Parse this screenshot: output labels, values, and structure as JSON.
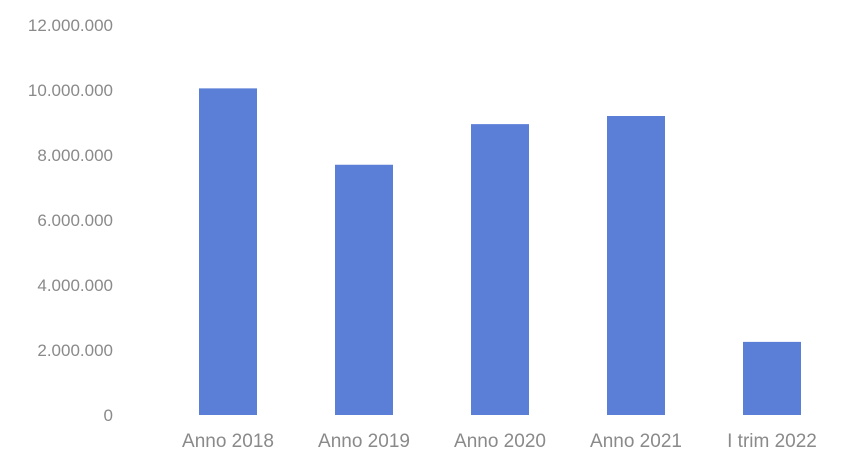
{
  "chart_data": {
    "type": "bar",
    "title": "",
    "xlabel": "",
    "ylabel": "",
    "categories": [
      "Anno 2018",
      "Anno 2019",
      "Anno 2020",
      "Anno 2021",
      "I trim 2022"
    ],
    "values": [
      10050000,
      7700000,
      8950000,
      9200000,
      2250000
    ],
    "ylim": [
      0,
      12000000
    ],
    "yticks": [
      0,
      2000000,
      4000000,
      6000000,
      8000000,
      10000000,
      12000000
    ],
    "ytick_labels": [
      "0",
      "2.000.000",
      "4.000.000",
      "6.000.000",
      "8.000.000",
      "10.000.000",
      "12.000.000"
    ],
    "grid": false,
    "legend": "none",
    "bar_color": "#5b7fd6"
  }
}
